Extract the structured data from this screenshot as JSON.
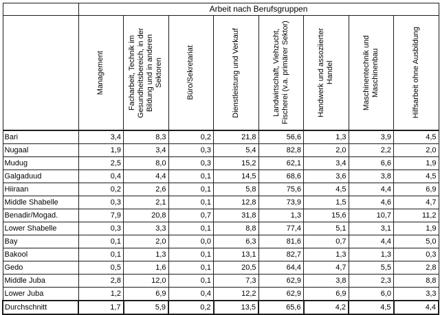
{
  "chart_data": {
    "type": "table",
    "title": "Arbeit nach Berufsgruppen",
    "corner_label": "",
    "columns": [
      "Management",
      "Facharbeit, Technik im Gesundheitsbereich, in der Bildung und in anderen Sektoren",
      "Büro/Sekretariat",
      "Dienstleistung und Verkauf",
      "Landwirtschaft, Viehzucht, Fischerei (v.a. primärer Sektor)",
      "Handwerk und assoziierter Handel",
      "Maschinentechnik und Maschinenbau",
      "Hilfsarbeit ohne Ausbildung"
    ],
    "rows": [
      {
        "label": "Bari",
        "values": [
          "3,4",
          "8,3",
          "0,2",
          "21,8",
          "56,6",
          "1,3",
          "3,9",
          "4,5"
        ]
      },
      {
        "label": "Nugaal",
        "values": [
          "1,9",
          "3,4",
          "0,3",
          "5,4",
          "82,8",
          "2,0",
          "2,2",
          "2,0"
        ]
      },
      {
        "label": "Mudug",
        "values": [
          "2,5",
          "8,0",
          "0,3",
          "15,2",
          "62,1",
          "3,4",
          "6,6",
          "1,9"
        ]
      },
      {
        "label": "Galgaduud",
        "values": [
          "0,4",
          "4,4",
          "0,1",
          "14,5",
          "68,6",
          "3,6",
          "3,8",
          "4,5"
        ]
      },
      {
        "label": "Hiiraan",
        "values": [
          "0,2",
          "2,6",
          "0,1",
          "5,8",
          "75,6",
          "4,5",
          "4,4",
          "6,9"
        ]
      },
      {
        "label": "Middle Shabelle",
        "values": [
          "0,3",
          "2,1",
          "0,1",
          "12,8",
          "73,9",
          "1,5",
          "4,6",
          "4,7"
        ]
      },
      {
        "label": "Benadir/Mogad.",
        "values": [
          "7,9",
          "20,8",
          "0,7",
          "31,8",
          "1,3",
          "15,6",
          "10,7",
          "11,2"
        ]
      },
      {
        "label": "Lower Shabelle",
        "values": [
          "0,3",
          "3,3",
          "0,1",
          "8,8",
          "77,4",
          "5,1",
          "3,1",
          "1,9"
        ]
      },
      {
        "label": "Bay",
        "values": [
          "0,1",
          "2,0",
          "0,0",
          "6,3",
          "81,6",
          "0,7",
          "4,4",
          "5,0"
        ]
      },
      {
        "label": "Bakool",
        "values": [
          "0,1",
          "1,3",
          "0,1",
          "13,1",
          "82,7",
          "1,3",
          "1,3",
          "0,3"
        ]
      },
      {
        "label": "Gedo",
        "values": [
          "0,5",
          "1,6",
          "0,1",
          "20,5",
          "64,4",
          "4,7",
          "5,5",
          "2,8"
        ]
      },
      {
        "label": "Middle Juba",
        "values": [
          "2,8",
          "12,0",
          "0,1",
          "7,3",
          "62,9",
          "3,8",
          "2,3",
          "8,8"
        ]
      },
      {
        "label": "Lower Juba",
        "values": [
          "1,2",
          "6,9",
          "0,4",
          "12,2",
          "62,9",
          "6,9",
          "6,0",
          "3,3"
        ]
      }
    ],
    "summary_row": {
      "label": "Durchschnitt",
      "values": [
        "1,7",
        "5,9",
        "0,2",
        "13,5",
        "65,6",
        "4,2",
        "4,5",
        "4,4"
      ]
    }
  }
}
